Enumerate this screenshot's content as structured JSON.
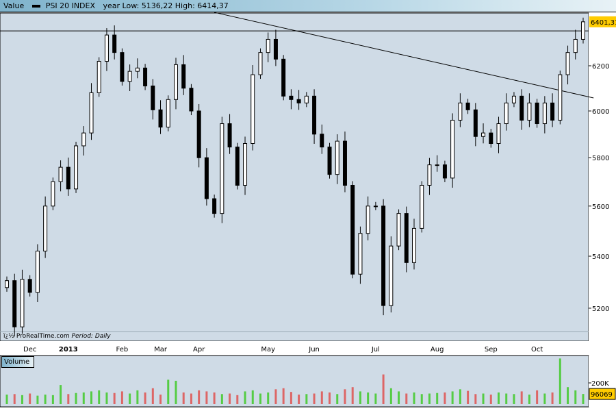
{
  "header": {
    "series_label": "Value",
    "instrument": "PSI 20 INDEX",
    "year_range": "year Low: 5136,22 High: 6414,37"
  },
  "footer": {
    "source": "ï¿½ ProRealTime.com",
    "period_label": "Period:",
    "period_value": "Daily"
  },
  "colors": {
    "background": "#cfdbe6",
    "up": "#ffffff",
    "down": "#000000",
    "vol_up": "#55cc44",
    "vol_down": "#dd6666",
    "price_tag": "#ffcc00"
  },
  "chart_data": {
    "type": "candlestick",
    "scale": "log",
    "ylim": [
      5080,
      6460
    ],
    "y_ticks": [
      5200,
      5400,
      5600,
      5800,
      6000,
      6200
    ],
    "current_price_label": "6401,31",
    "closes": [
      5305,
      5130,
      5310,
      5260,
      5420,
      5600,
      5700,
      5760,
      5670,
      5850,
      5905,
      6080,
      6220,
      6340,
      6260,
      6130,
      6175,
      6190,
      6110,
      6005,
      5930,
      6050,
      6205,
      6100,
      6000,
      5800,
      5630,
      5570,
      5945,
      5845,
      5685,
      5860,
      6160,
      6260,
      6320,
      6230,
      6065,
      6050,
      6035,
      6065,
      5900,
      5845,
      5730,
      5870,
      5685,
      5330,
      5490,
      5600,
      5600,
      5210,
      5440,
      5570,
      5375,
      5510,
      5685,
      5770,
      5770,
      5715,
      5960,
      6035,
      6005,
      5890,
      5905,
      5860,
      5945,
      6035,
      6065,
      5960,
      6035,
      5945,
      6035,
      5960,
      6160,
      6260,
      6320,
      6401
    ],
    "x_ticks": [
      {
        "label": "Dec",
        "index": 3
      },
      {
        "label": "2013",
        "index": 8,
        "bold": true
      },
      {
        "label": "Feb",
        "index": 15
      },
      {
        "label": "Mar",
        "index": 20
      },
      {
        "label": "Apr",
        "index": 25
      },
      {
        "label": "May",
        "index": 34
      },
      {
        "label": "Jun",
        "index": 40
      },
      {
        "label": "Jul",
        "index": 48
      },
      {
        "label": "Aug",
        "index": 56
      },
      {
        "label": "Sep",
        "index": 63
      },
      {
        "label": "Oct",
        "index": 69
      }
    ],
    "horizontal_line": 6359,
    "trendline": {
      "from": {
        "index": 27,
        "price": 6445
      },
      "to": {
        "index": 76,
        "price": 6057
      }
    },
    "volume": {
      "label": "Volume",
      "tick_label": "200K",
      "tick_value": 200,
      "current_label": "96069",
      "values_k": [
        90,
        95,
        85,
        100,
        80,
        90,
        85,
        180,
        95,
        105,
        110,
        120,
        130,
        110,
        105,
        120,
        100,
        130,
        110,
        150,
        90,
        230,
        220,
        110,
        100,
        130,
        120,
        110,
        95,
        100,
        85,
        120,
        130,
        100,
        110,
        140,
        150,
        115,
        90,
        95,
        100,
        120,
        110,
        95,
        140,
        160,
        120,
        110,
        100,
        280,
        150,
        120,
        100,
        110,
        95,
        100,
        105,
        110,
        120,
        140,
        125,
        95,
        100,
        90,
        110,
        100,
        95,
        120,
        90,
        130,
        100,
        110,
        430,
        160,
        130,
        96
      ]
    }
  }
}
